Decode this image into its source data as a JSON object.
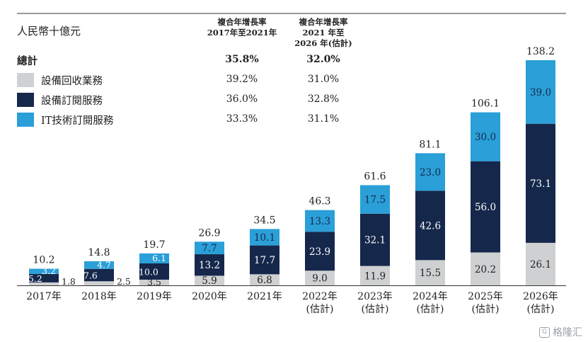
{
  "chart_data": {
    "type": "bar",
    "stacked": true,
    "unit_label": "人民幣十億元",
    "categories": [
      "2017年",
      "2018年",
      "2019年",
      "2020年",
      "2021年",
      "2022年\n(估計)",
      "2023年\n(估計)",
      "2024年\n(估計)",
      "2025年\n(估計)",
      "2026年\n(估計)"
    ],
    "series": [
      {
        "name": "設備回收業務",
        "color": "#cfd0d2",
        "values": [
          1.8,
          2.5,
          3.5,
          5.9,
          6.8,
          9.0,
          11.9,
          15.5,
          20.2,
          26.1
        ]
      },
      {
        "name": "設備訂閱服務",
        "color": "#15284b",
        "values": [
          5.2,
          7.6,
          10.0,
          13.2,
          17.7,
          23.9,
          32.1,
          42.6,
          56.0,
          73.1
        ]
      },
      {
        "name": "IT技術訂閱服務",
        "color": "#2a9fd8",
        "values": [
          3.2,
          4.7,
          6.1,
          7.7,
          10.1,
          13.3,
          17.5,
          23.0,
          30.0,
          39.0
        ]
      }
    ],
    "totals": [
      10.2,
      14.8,
      19.7,
      26.9,
      34.5,
      46.3,
      61.6,
      81.1,
      106.1,
      138.2
    ],
    "ylim": [
      0,
      138.2
    ],
    "grid": false,
    "legend_position": "top-left",
    "cagr_table": {
      "headers": [
        "複合年增長率\n2017年至2021年",
        "複合年增長率\n2021 年至\n2026 年(估計)"
      ],
      "rows": [
        {
          "label": "總計",
          "bold": true,
          "v1": "35.8%",
          "v2": "32.0%"
        },
        {
          "label": "設備回收業務",
          "color": "#cfd0d2",
          "v1": "39.2%",
          "v2": "31.0%"
        },
        {
          "label": "設備訂閱服務",
          "color": "#15284b",
          "v1": "36.0%",
          "v2": "32.8%"
        },
        {
          "label": "IT技術訂閱服務",
          "color": "#2a9fd8",
          "v1": "33.3%",
          "v2": "31.1%"
        }
      ]
    }
  },
  "watermark": "格隆汇"
}
